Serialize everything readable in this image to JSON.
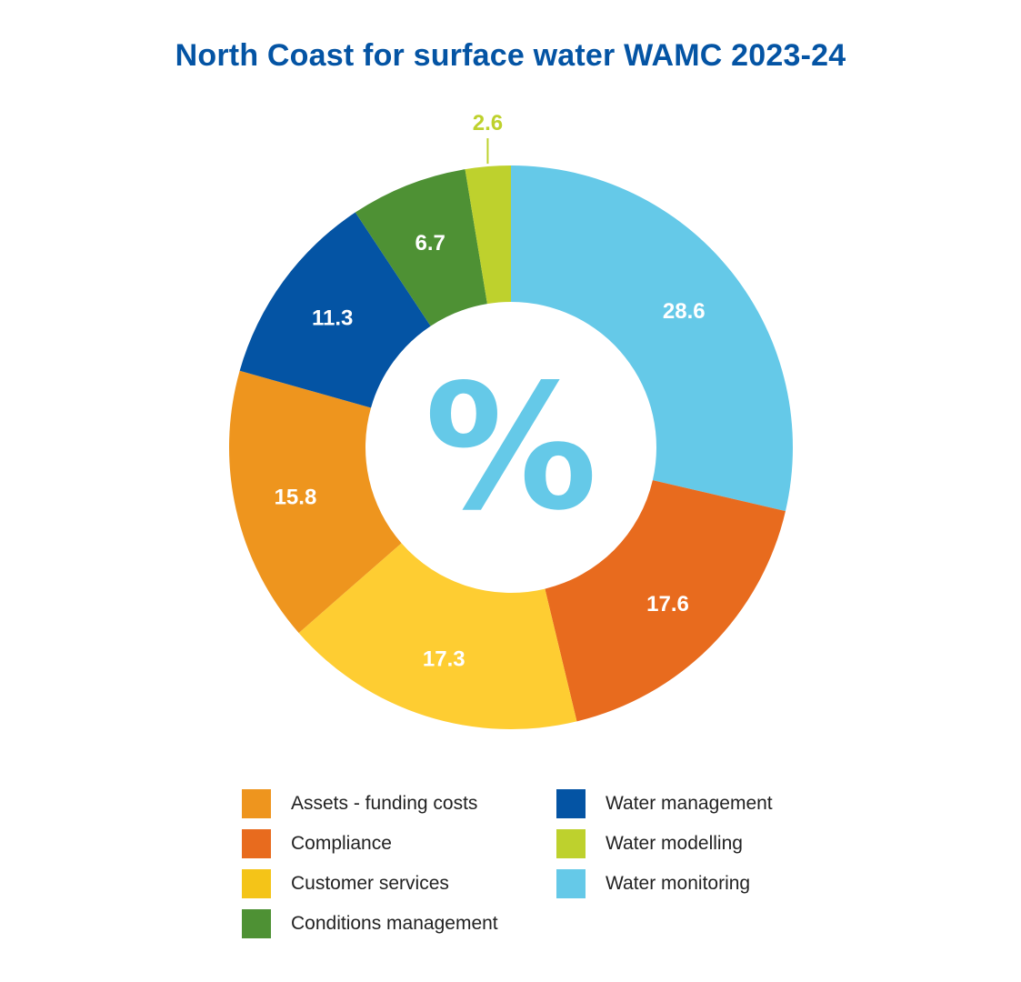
{
  "chart_data": {
    "type": "pie",
    "variant": "donut",
    "title": "North Coast for surface water WAMC 2023-24",
    "center_symbol": "%",
    "slices": [
      {
        "name": "Water monitoring",
        "value": 28.6,
        "label": "28.6",
        "color": "#65c9e8"
      },
      {
        "name": "Compliance",
        "value": 17.6,
        "label": "17.6",
        "color": "#e86b1e"
      },
      {
        "name": "Customer services",
        "value": 17.3,
        "label": "17.3",
        "color": "#fecd32"
      },
      {
        "name": "Assets - funding costs",
        "value": 15.8,
        "label": "15.8",
        "color": "#ee951e"
      },
      {
        "name": "Water management",
        "value": 11.3,
        "label": "11.3",
        "color": "#0454a4"
      },
      {
        "name": "Conditions management",
        "value": 6.7,
        "label": "6.7",
        "color": "#4e9134"
      },
      {
        "name": "Water modelling",
        "value": 2.6,
        "label": "2.6",
        "color": "#bed12d"
      }
    ],
    "legend_left": [
      {
        "label": "Assets - funding costs",
        "color": "#ee951e"
      },
      {
        "label": "Compliance",
        "color": "#e86b1e"
      },
      {
        "label": "Customer services",
        "color": "#f4c418"
      },
      {
        "label": "Conditions management",
        "color": "#4e9134"
      }
    ],
    "legend_right": [
      {
        "label": "Water management",
        "color": "#0454a4"
      },
      {
        "label": "Water modelling",
        "color": "#bed12d"
      },
      {
        "label": "Water monitoring",
        "color": "#65c9e8"
      }
    ],
    "legend_position": "bottom",
    "center_color": "#65c9e8"
  }
}
